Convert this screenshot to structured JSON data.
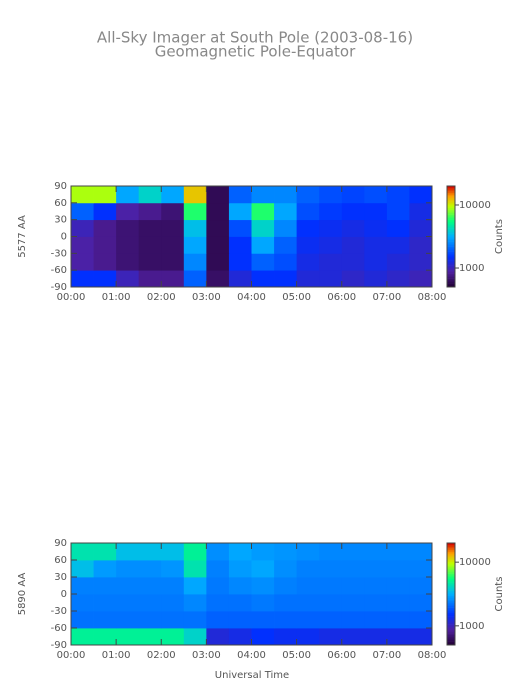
{
  "title": "All-Sky Imager at South Pole (2003-08-16)",
  "subtitle": "Geomagnetic Pole-Equator",
  "xlabel": "Universal Time",
  "chart_data": [
    {
      "type": "heatmap",
      "ylabel": "5577 AA",
      "colorbar_label": "Counts",
      "zscale": "log",
      "zlim": [
        500,
        20000
      ],
      "zticks": [
        1000,
        10000
      ],
      "xlim": [
        0,
        8
      ],
      "xticks": [
        {
          "value": 0,
          "label": "00:00"
        },
        {
          "value": 1,
          "label": "01:00"
        },
        {
          "value": 2,
          "label": "02:00"
        },
        {
          "value": 3,
          "label": "03:00"
        },
        {
          "value": 4,
          "label": "04:00"
        },
        {
          "value": 5,
          "label": "05:00"
        },
        {
          "value": 6,
          "label": "06:00"
        },
        {
          "value": 7,
          "label": "07:00"
        },
        {
          "value": 8,
          "label": "08:00"
        }
      ],
      "ylim": [
        -90,
        90
      ],
      "yticks": [
        -90,
        -60,
        -30,
        0,
        30,
        60,
        90
      ],
      "x": [
        0.25,
        0.75,
        1.25,
        1.75,
        2.25,
        2.75,
        3.25,
        3.75,
        4.25,
        4.75,
        5.25,
        5.75,
        6.25,
        6.75,
        7.25,
        7.75
      ],
      "y": [
        -75,
        -45,
        -15,
        15,
        45,
        75
      ],
      "z": [
        [
          1500,
          1500,
          1000,
          800,
          800,
          2000,
          650,
          1200,
          1500,
          1500,
          1200,
          1200,
          1100,
          1200,
          1100,
          1000
        ],
        [
          900,
          800,
          700,
          650,
          650,
          2500,
          600,
          1500,
          2000,
          1800,
          1300,
          1200,
          1200,
          1300,
          1200,
          1100
        ],
        [
          900,
          800,
          700,
          650,
          650,
          3000,
          600,
          1500,
          3000,
          2000,
          1400,
          1300,
          1200,
          1300,
          1300,
          1100
        ],
        [
          1000,
          800,
          700,
          650,
          650,
          3500,
          600,
          1800,
          4000,
          2500,
          1500,
          1400,
          1300,
          1400,
          1500,
          1200
        ],
        [
          2000,
          1500,
          900,
          800,
          700,
          6000,
          600,
          3000,
          6000,
          3000,
          1800,
          1600,
          1500,
          1500,
          1700,
          1300
        ],
        [
          9000,
          9000,
          3000,
          4000,
          3000,
          12000,
          600,
          2000,
          2500,
          2500,
          2000,
          1800,
          1700,
          1800,
          1700,
          1500
        ]
      ]
    },
    {
      "type": "heatmap",
      "ylabel": "5890 AA",
      "colorbar_label": "Counts",
      "zscale": "log",
      "zlim": [
        500,
        20000
      ],
      "zticks": [
        1000,
        10000
      ],
      "xlim": [
        0,
        8
      ],
      "xticks": [
        {
          "value": 0,
          "label": "00:00"
        },
        {
          "value": 1,
          "label": "01:00"
        },
        {
          "value": 2,
          "label": "02:00"
        },
        {
          "value": 3,
          "label": "03:00"
        },
        {
          "value": 4,
          "label": "04:00"
        },
        {
          "value": 5,
          "label": "05:00"
        },
        {
          "value": 6,
          "label": "06:00"
        },
        {
          "value": 7,
          "label": "07:00"
        },
        {
          "value": 8,
          "label": "08:00"
        }
      ],
      "ylim": [
        -90,
        90
      ],
      "yticks": [
        -90,
        -60,
        -30,
        0,
        30,
        60,
        90
      ],
      "x": [
        0.25,
        0.75,
        1.25,
        1.75,
        2.25,
        2.75,
        3.25,
        3.75,
        4.25,
        4.75,
        5.25,
        5.75,
        6.25,
        6.75,
        7.25,
        7.75
      ],
      "y": [
        -75,
        -45,
        -15,
        15,
        45,
        75
      ],
      "z": [
        [
          5000,
          5000,
          5000,
          5000,
          5000,
          4000,
          1200,
          1300,
          1500,
          1400,
          1400,
          1300,
          1300,
          1300,
          1300,
          1300
        ],
        [
          2200,
          2200,
          2200,
          2200,
          2200,
          2200,
          2000,
          2000,
          2000,
          2000,
          2000,
          2000,
          2000,
          2000,
          2000,
          2000
        ],
        [
          2300,
          2300,
          2300,
          2300,
          2300,
          2500,
          2200,
          2200,
          2300,
          2200,
          2200,
          2200,
          2200,
          2200,
          2200,
          2200
        ],
        [
          2400,
          2400,
          2400,
          2400,
          2400,
          3000,
          2300,
          2500,
          2600,
          2400,
          2300,
          2300,
          2300,
          2300,
          2300,
          2300
        ],
        [
          3500,
          2800,
          2600,
          2600,
          2700,
          4500,
          2400,
          2800,
          3000,
          2600,
          2400,
          2400,
          2400,
          2400,
          2400,
          2400
        ],
        [
          4500,
          4500,
          3500,
          3500,
          3500,
          5000,
          2600,
          3000,
          2800,
          2700,
          2600,
          2500,
          2500,
          2500,
          2500,
          2500
        ]
      ]
    }
  ]
}
